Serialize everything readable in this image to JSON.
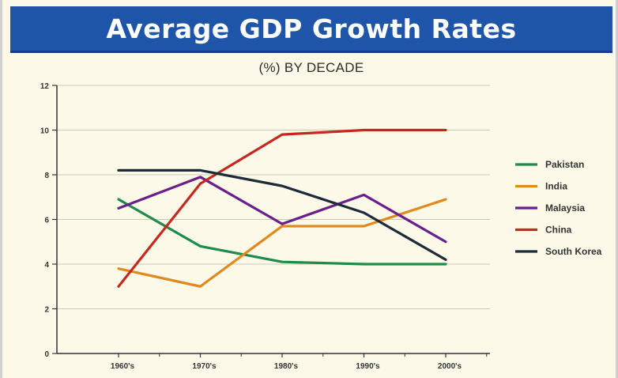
{
  "header": {
    "title": "Average GDP Growth Rates"
  },
  "chart_data": {
    "type": "line",
    "title": "Average GDP Growth Rates",
    "subtitle": "(%) BY DECADE",
    "xlabel": "",
    "ylabel": "",
    "categories": [
      "1960's",
      "1970's",
      "1980's",
      "1990's",
      "2000's"
    ],
    "ylim": [
      0,
      12
    ],
    "yticks": [
      0,
      2,
      4,
      6,
      8,
      10,
      12
    ],
    "grid": true,
    "legend_position": "right",
    "series": [
      {
        "name": "Pakistan",
        "color": "#1e8b4a",
        "values": [
          6.9,
          4.8,
          4.1,
          4.0,
          4.0
        ]
      },
      {
        "name": "India",
        "color": "#e08a1e",
        "values": [
          3.8,
          3.0,
          5.7,
          5.7,
          6.9
        ]
      },
      {
        "name": "Malaysia",
        "color": "#6a1f8a",
        "values": [
          6.5,
          7.9,
          5.8,
          7.1,
          5.0
        ]
      },
      {
        "name": "China",
        "color": "#c4281f",
        "values": [
          3.0,
          7.6,
          9.8,
          10.0,
          10.0
        ]
      },
      {
        "name": "South Korea",
        "color": "#1d2a3a",
        "values": [
          8.2,
          8.2,
          7.5,
          6.3,
          4.2
        ]
      }
    ]
  }
}
